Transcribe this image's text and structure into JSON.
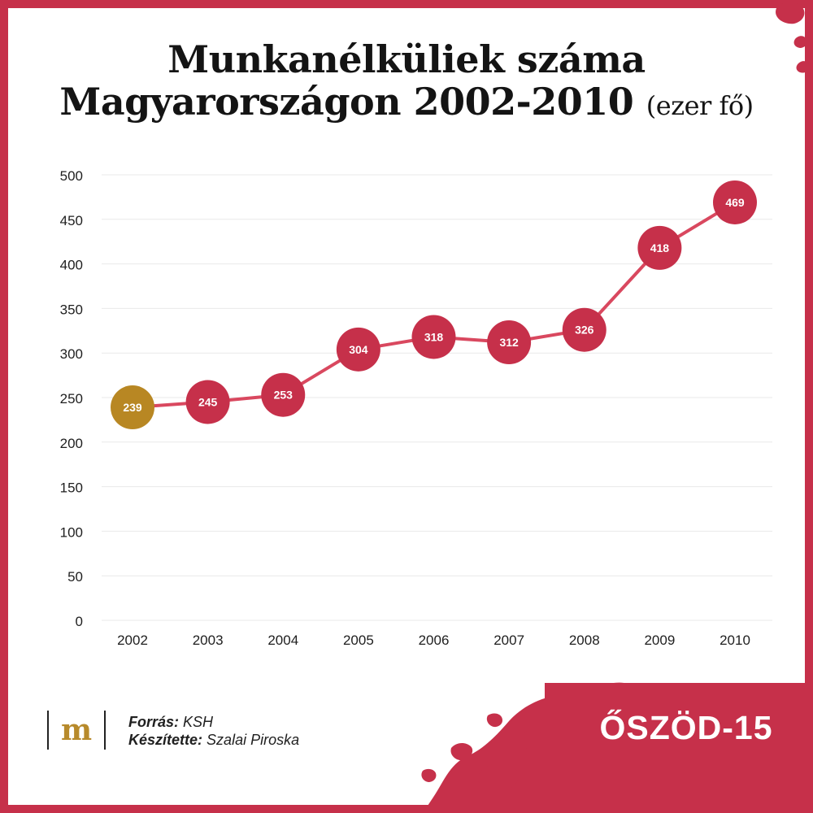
{
  "title": {
    "line1": "Munkanélküliek száma",
    "line2": "Magyarországon 2002-2010",
    "unit": "(ezer fő)"
  },
  "footer": {
    "logo": "m",
    "source_label": "Forrás:",
    "source_value": "KSH",
    "author_label": "Készítette:",
    "author_value": "Szalai Piroska"
  },
  "brand": {
    "label": "ŐSZÖD-15"
  },
  "colors": {
    "frame": "#c6304a",
    "line": "#d9485f",
    "point": "#c6304a",
    "highlight": "#b88723",
    "grid": "#e9e9e9",
    "text": "#1e1e1e"
  },
  "chart_data": {
    "type": "line",
    "categories": [
      "2002",
      "2003",
      "2004",
      "2005",
      "2006",
      "2007",
      "2008",
      "2009",
      "2010"
    ],
    "series": [
      {
        "values": [
          239,
          245,
          253,
          304,
          318,
          312,
          326,
          418,
          469
        ]
      }
    ],
    "ylim": [
      0,
      500
    ],
    "yticks": [
      0,
      50,
      100,
      150,
      200,
      250,
      300,
      350,
      400,
      450,
      500
    ],
    "grid": true,
    "highlight_index": 0
  }
}
